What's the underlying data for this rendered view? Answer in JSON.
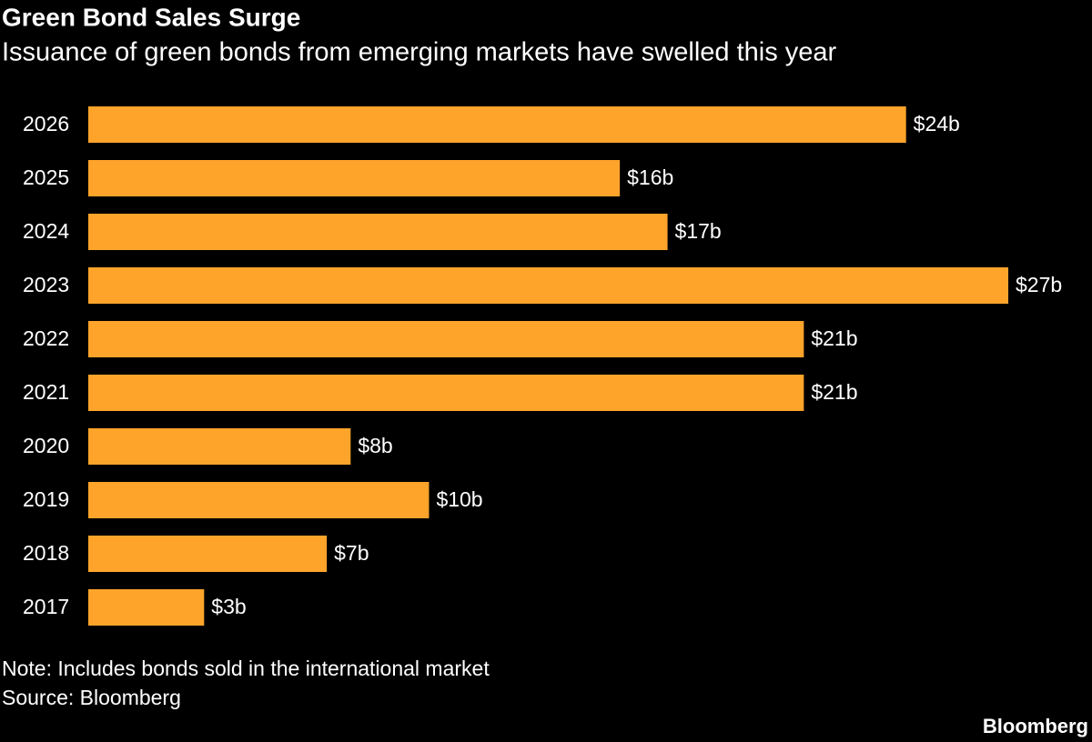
{
  "chart_data": {
    "type": "bar",
    "orientation": "horizontal",
    "title": "Green Bond Sales Surge",
    "subtitle": "Issuance of green bonds from emerging markets have swelled this year",
    "categories": [
      "2026",
      "2025",
      "2024",
      "2023",
      "2022",
      "2021",
      "2020",
      "2019",
      "2018",
      "2017"
    ],
    "values": [
      24.0,
      15.6,
      17.0,
      27.0,
      21.0,
      21.0,
      7.7,
      10.0,
      7.0,
      3.4
    ],
    "value_labels": [
      "$24b",
      "$16b",
      "$17b",
      "$27b",
      "$21b",
      "$21b",
      "$8b",
      "$10b",
      "$7b",
      "$3b"
    ],
    "color": "#ffa42b",
    "note": "Note: Includes bonds sold in the international market",
    "source": "Source: Bloomberg",
    "brand": "Bloomberg"
  }
}
